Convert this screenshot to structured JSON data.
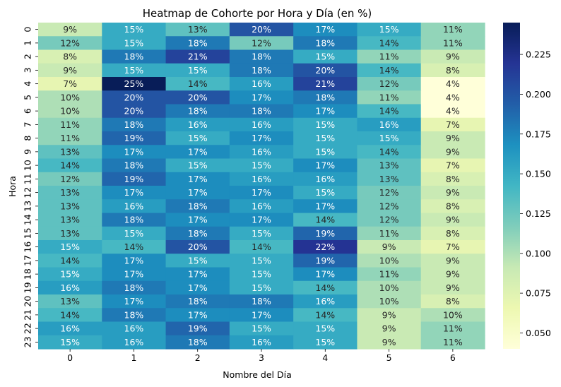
{
  "chart_data": {
    "type": "heatmap",
    "title": "Heatmap de Cohorte por Hora y Día (en %)",
    "xlabel": "Nombre del Día",
    "ylabel": "Hora",
    "x_categories": [
      "0",
      "1",
      "2",
      "3",
      "4",
      "5",
      "6"
    ],
    "y_categories": [
      "0",
      "1",
      "2",
      "3",
      "4",
      "5",
      "6",
      "7",
      "8",
      "9",
      "10",
      "11",
      "12",
      "13",
      "14",
      "15",
      "16",
      "17",
      "18",
      "19",
      "20",
      "21",
      "22",
      "23"
    ],
    "values": [
      [
        0.09,
        0.15,
        0.13,
        0.2,
        0.17,
        0.15,
        0.11
      ],
      [
        0.12,
        0.15,
        0.18,
        0.12,
        0.18,
        0.14,
        0.11
      ],
      [
        0.08,
        0.18,
        0.21,
        0.18,
        0.15,
        0.11,
        0.09
      ],
      [
        0.09,
        0.15,
        0.15,
        0.18,
        0.2,
        0.14,
        0.08
      ],
      [
        0.07,
        0.245,
        0.14,
        0.16,
        0.21,
        0.12,
        0.04
      ],
      [
        0.1,
        0.2,
        0.2,
        0.17,
        0.18,
        0.11,
        0.04
      ],
      [
        0.1,
        0.2,
        0.18,
        0.18,
        0.17,
        0.14,
        0.04
      ],
      [
        0.11,
        0.18,
        0.16,
        0.16,
        0.15,
        0.16,
        0.07
      ],
      [
        0.11,
        0.19,
        0.15,
        0.17,
        0.15,
        0.15,
        0.09
      ],
      [
        0.13,
        0.17,
        0.17,
        0.16,
        0.15,
        0.14,
        0.09
      ],
      [
        0.14,
        0.18,
        0.15,
        0.15,
        0.17,
        0.13,
        0.07
      ],
      [
        0.12,
        0.19,
        0.17,
        0.16,
        0.16,
        0.13,
        0.08
      ],
      [
        0.13,
        0.17,
        0.17,
        0.17,
        0.15,
        0.12,
        0.09
      ],
      [
        0.13,
        0.16,
        0.18,
        0.16,
        0.17,
        0.12,
        0.08
      ],
      [
        0.13,
        0.18,
        0.17,
        0.17,
        0.14,
        0.12,
        0.09
      ],
      [
        0.13,
        0.15,
        0.18,
        0.15,
        0.19,
        0.11,
        0.08
      ],
      [
        0.15,
        0.14,
        0.2,
        0.14,
        0.22,
        0.09,
        0.07
      ],
      [
        0.14,
        0.17,
        0.15,
        0.15,
        0.19,
        0.1,
        0.09
      ],
      [
        0.15,
        0.17,
        0.17,
        0.15,
        0.17,
        0.11,
        0.09
      ],
      [
        0.16,
        0.18,
        0.17,
        0.15,
        0.14,
        0.1,
        0.09
      ],
      [
        0.13,
        0.17,
        0.18,
        0.18,
        0.16,
        0.1,
        0.08
      ],
      [
        0.14,
        0.18,
        0.17,
        0.17,
        0.14,
        0.09,
        0.1
      ],
      [
        0.16,
        0.16,
        0.19,
        0.15,
        0.15,
        0.09,
        0.11
      ],
      [
        0.15,
        0.16,
        0.18,
        0.16,
        0.15,
        0.09,
        0.11
      ]
    ],
    "cell_labels": [
      [
        "9%",
        "15%",
        "13%",
        "20%",
        "17%",
        "15%",
        "11%"
      ],
      [
        "12%",
        "15%",
        "18%",
        "12%",
        "18%",
        "14%",
        "11%"
      ],
      [
        "8%",
        "18%",
        "21%",
        "18%",
        "15%",
        "11%",
        "9%"
      ],
      [
        "9%",
        "15%",
        "15%",
        "18%",
        "20%",
        "14%",
        "8%"
      ],
      [
        "7%",
        "25%",
        "14%",
        "16%",
        "21%",
        "12%",
        "4%"
      ],
      [
        "10%",
        "20%",
        "20%",
        "17%",
        "18%",
        "11%",
        "4%"
      ],
      [
        "10%",
        "20%",
        "18%",
        "18%",
        "17%",
        "14%",
        "4%"
      ],
      [
        "11%",
        "18%",
        "16%",
        "16%",
        "15%",
        "16%",
        "7%"
      ],
      [
        "11%",
        "19%",
        "15%",
        "17%",
        "15%",
        "15%",
        "9%"
      ],
      [
        "13%",
        "17%",
        "17%",
        "16%",
        "15%",
        "14%",
        "9%"
      ],
      [
        "14%",
        "18%",
        "15%",
        "15%",
        "17%",
        "13%",
        "7%"
      ],
      [
        "12%",
        "19%",
        "17%",
        "16%",
        "16%",
        "13%",
        "8%"
      ],
      [
        "13%",
        "17%",
        "17%",
        "17%",
        "15%",
        "12%",
        "9%"
      ],
      [
        "13%",
        "16%",
        "18%",
        "16%",
        "17%",
        "12%",
        "8%"
      ],
      [
        "13%",
        "18%",
        "17%",
        "17%",
        "14%",
        "12%",
        "9%"
      ],
      [
        "13%",
        "15%",
        "18%",
        "15%",
        "19%",
        "11%",
        "8%"
      ],
      [
        "15%",
        "14%",
        "20%",
        "14%",
        "22%",
        "9%",
        "7%"
      ],
      [
        "14%",
        "17%",
        "15%",
        "15%",
        "19%",
        "10%",
        "9%"
      ],
      [
        "15%",
        "17%",
        "17%",
        "15%",
        "17%",
        "11%",
        "9%"
      ],
      [
        "16%",
        "18%",
        "17%",
        "15%",
        "14%",
        "10%",
        "9%"
      ],
      [
        "13%",
        "17%",
        "18%",
        "18%",
        "16%",
        "10%",
        "8%"
      ],
      [
        "14%",
        "18%",
        "17%",
        "17%",
        "14%",
        "9%",
        "10%"
      ],
      [
        "16%",
        "16%",
        "19%",
        "15%",
        "15%",
        "9%",
        "11%"
      ],
      [
        "15%",
        "16%",
        "18%",
        "16%",
        "15%",
        "9%",
        "11%"
      ]
    ],
    "colorscale": "YlGnBu",
    "vmin": 0.04,
    "vmax": 0.245,
    "colorbar_ticks": [
      0.05,
      0.075,
      0.1,
      0.125,
      0.15,
      0.175,
      0.2,
      0.225
    ],
    "colorbar_tick_labels": [
      "0.050",
      "0.075",
      "0.100",
      "0.125",
      "0.150",
      "0.175",
      "0.200",
      "0.225"
    ]
  }
}
